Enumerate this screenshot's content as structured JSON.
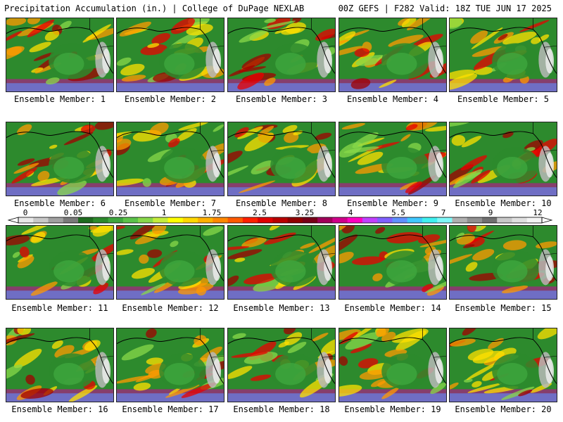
{
  "header": {
    "title_left": "Precipitation Accumulation (in.) | College of DuPage NEXLAB",
    "title_right": "00Z GEFS | F282 Valid: 18Z TUE JUN 17 2025"
  },
  "members": [
    {
      "label": "Ensemble Member: 1"
    },
    {
      "label": "Ensemble Member: 2"
    },
    {
      "label": "Ensemble Member: 3"
    },
    {
      "label": "Ensemble Member: 4"
    },
    {
      "label": "Ensemble Member: 5"
    },
    {
      "label": "Ensemble Member: 6"
    },
    {
      "label": "Ensemble Member: 7"
    },
    {
      "label": "Ensemble Member: 8"
    },
    {
      "label": "Ensemble Member: 9"
    },
    {
      "label": "Ensemble Member: 10"
    },
    {
      "label": "Ensemble Member: 11"
    },
    {
      "label": "Ensemble Member: 12"
    },
    {
      "label": "Ensemble Member: 13"
    },
    {
      "label": "Ensemble Member: 14"
    },
    {
      "label": "Ensemble Member: 15"
    },
    {
      "label": "Ensemble Member: 16"
    },
    {
      "label": "Ensemble Member: 17"
    },
    {
      "label": "Ensemble Member: 18"
    },
    {
      "label": "Ensemble Member: 19"
    },
    {
      "label": "Ensemble Member: 20"
    }
  ],
  "colorbar": {
    "ticks": [
      "0",
      "0.05",
      "0.25",
      "1",
      "1.75",
      "2.5",
      "3.25",
      "4",
      "5.5",
      "7",
      "9",
      "12"
    ],
    "colors": [
      "#e8e8e8",
      "#c8c8c8",
      "#a0a0a0",
      "#7a7a7a",
      "#1f6b1f",
      "#2d8a2d",
      "#3fa63f",
      "#5cc24a",
      "#88d84a",
      "#c4ec3c",
      "#ffff00",
      "#ffd800",
      "#ffb000",
      "#ff8800",
      "#ff5a00",
      "#ff2000",
      "#e00000",
      "#b80000",
      "#900000",
      "#780018",
      "#a0005a",
      "#d0008a",
      "#ff00c0",
      "#c040ff",
      "#8060ff",
      "#6090ff",
      "#40c8ff",
      "#40f0f0",
      "#80f8f8",
      "#b0b0b0",
      "#909090",
      "#707070",
      "#c8c8c8",
      "#e0e0e0",
      "#f4f4f4"
    ],
    "map_colors": {
      "ocean_base": "#2d8a2d",
      "land": "#3fa63f",
      "light": "#88d84a",
      "yellow": "#ffe000",
      "orange": "#ff9a00",
      "red": "#e80000",
      "dark_red": "#a00000",
      "magenta": "#d000a0",
      "blue": "#6090ff",
      "gray": "#b8b8b8",
      "white": "#f0f0f0"
    }
  }
}
